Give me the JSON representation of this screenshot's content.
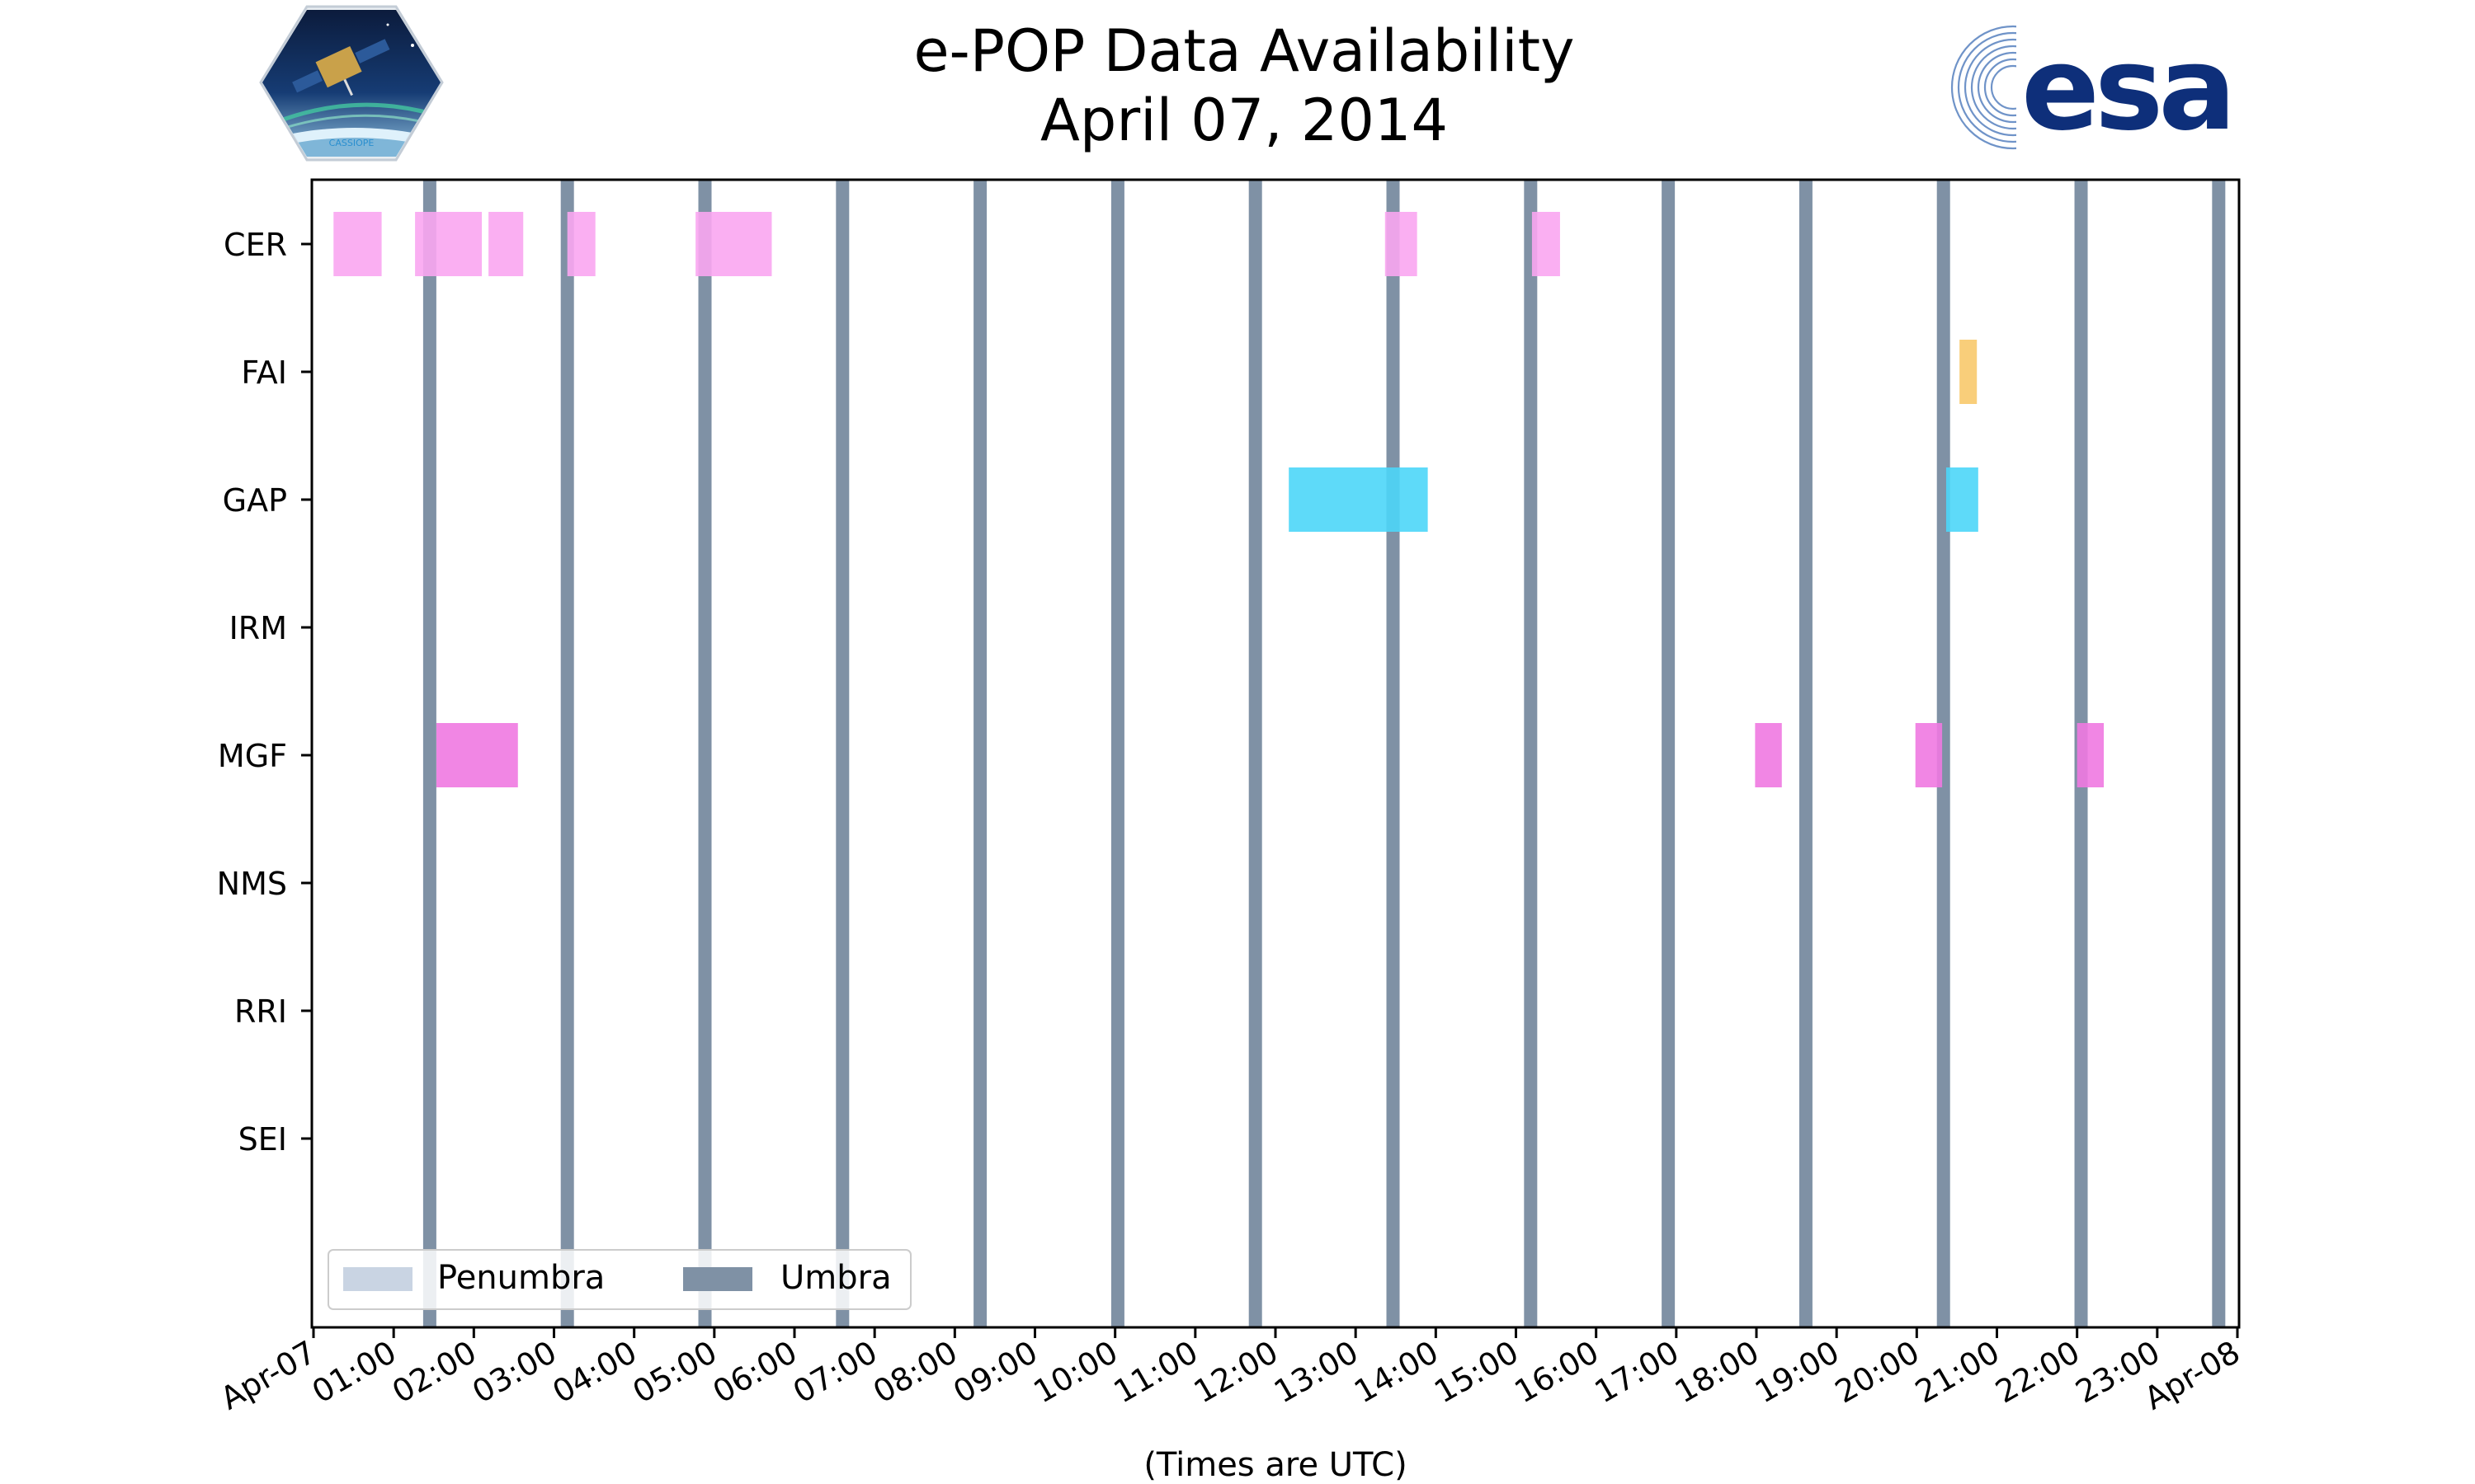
{
  "chart_data": {
    "type": "timeline",
    "title": "e-POP Data Availability",
    "subtitle": "April 07, 2014",
    "xlabel": "(Times are UTC)",
    "x_range": [
      "2014-04-07 00:00",
      "2014-04-08 00:00"
    ],
    "x_tick_labels": [
      "Apr-07",
      "01:00",
      "02:00",
      "03:00",
      "04:00",
      "05:00",
      "06:00",
      "07:00",
      "08:00",
      "09:00",
      "10:00",
      "11:00",
      "12:00",
      "13:00",
      "14:00",
      "15:00",
      "16:00",
      "17:00",
      "18:00",
      "19:00",
      "20:00",
      "21:00",
      "22:00",
      "23:00",
      "Apr-08"
    ],
    "instruments": [
      "CER",
      "FAI",
      "GAP",
      "IRM",
      "MGF",
      "NMS",
      "RRI",
      "SEI"
    ],
    "instrument_colors": {
      "CER": "#f9a6f1",
      "FAI": "#f8c96c",
      "GAP": "#4dd6f8",
      "MGF": "#ef79e1"
    },
    "data_intervals": [
      {
        "instrument": "CER",
        "start": "00:15",
        "end": "00:51"
      },
      {
        "instrument": "CER",
        "start": "01:16",
        "end": "02:06"
      },
      {
        "instrument": "CER",
        "start": "02:11",
        "end": "02:37"
      },
      {
        "instrument": "CER",
        "start": "03:10",
        "end": "03:31"
      },
      {
        "instrument": "CER",
        "start": "04:46",
        "end": "05:43"
      },
      {
        "instrument": "CER",
        "start": "13:22",
        "end": "13:46"
      },
      {
        "instrument": "CER",
        "start": "15:12",
        "end": "15:33"
      },
      {
        "instrument": "FAI",
        "start": "20:32",
        "end": "20:45"
      },
      {
        "instrument": "GAP",
        "start": "12:10",
        "end": "13:54"
      },
      {
        "instrument": "GAP",
        "start": "20:22",
        "end": "20:46"
      },
      {
        "instrument": "MGF",
        "start": "01:32",
        "end": "02:33"
      },
      {
        "instrument": "MGF",
        "start": "17:59",
        "end": "18:19"
      },
      {
        "instrument": "MGF",
        "start": "19:59",
        "end": "20:19"
      },
      {
        "instrument": "MGF",
        "start": "22:00",
        "end": "22:20"
      }
    ],
    "umbra_times": [
      "01:27",
      "03:10",
      "04:53",
      "06:36",
      "08:19",
      "10:02",
      "11:45",
      "13:28",
      "15:11",
      "16:54",
      "18:37",
      "20:20",
      "22:03",
      "23:46"
    ],
    "umbra_color": "#7f91a5",
    "penumbra_color": "#c9d4e3",
    "legend": {
      "position": "lower-left",
      "entries": [
        {
          "label": "Penumbra",
          "color": "#c9d4e3"
        },
        {
          "label": "Umbra",
          "color": "#7f91a5"
        }
      ]
    },
    "grid": false
  },
  "logos": {
    "left": "CASSIOPE",
    "right": "esa"
  }
}
